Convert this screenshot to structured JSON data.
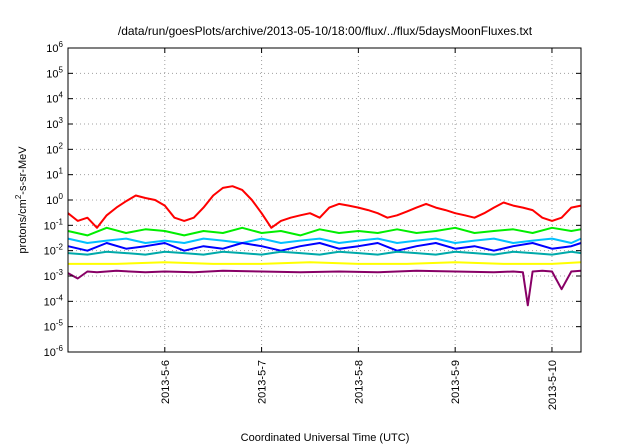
{
  "chart_data": {
    "type": "line",
    "title": "/data/run/goesPlots/archive/2013-05-10/18:00/flux/../flux/5daysMoonFluxes.txt",
    "xlabel": "Coordinated Universal Time (UTC)",
    "ylabel_parts": [
      "protons/cm",
      "2",
      "-s-sr-MeV"
    ],
    "yscale": "log",
    "ylim": [
      1e-06,
      1000000.0
    ],
    "xlim": [
      0.0,
      5.3
    ],
    "grid": true,
    "y_ticks": [
      {
        "exp": -6,
        "label": "10",
        "sup": "-6"
      },
      {
        "exp": -5,
        "label": "10",
        "sup": "-5"
      },
      {
        "exp": -4,
        "label": "10",
        "sup": "-4"
      },
      {
        "exp": -3,
        "label": "10",
        "sup": "-3"
      },
      {
        "exp": -2,
        "label": "10",
        "sup": "-2"
      },
      {
        "exp": -1,
        "label": "10",
        "sup": "-1"
      },
      {
        "exp": 0,
        "label": "10",
        "sup": "0"
      },
      {
        "exp": 1,
        "label": "10",
        "sup": "1"
      },
      {
        "exp": 2,
        "label": "10",
        "sup": "2"
      },
      {
        "exp": 3,
        "label": "10",
        "sup": "3"
      },
      {
        "exp": 4,
        "label": "10",
        "sup": "4"
      },
      {
        "exp": 5,
        "label": "10",
        "sup": "5"
      },
      {
        "exp": 6,
        "label": "10",
        "sup": "6"
      }
    ],
    "x_ticks": [
      {
        "x": 1.0,
        "label": "2013-5-6"
      },
      {
        "x": 2.0,
        "label": "2013-5-7"
      },
      {
        "x": 3.0,
        "label": "2013-5-8"
      },
      {
        "x": 4.0,
        "label": "2013-5-9"
      },
      {
        "x": 5.0,
        "label": "2013-5-10"
      }
    ],
    "series": [
      {
        "color": "#ff0000",
        "x": [
          0.0,
          0.1,
          0.2,
          0.3,
          0.4,
          0.5,
          0.6,
          0.7,
          0.8,
          0.9,
          1.0,
          1.1,
          1.2,
          1.3,
          1.4,
          1.5,
          1.6,
          1.7,
          1.8,
          1.9,
          2.0,
          2.1,
          2.2,
          2.3,
          2.4,
          2.5,
          2.6,
          2.7,
          2.8,
          2.9,
          3.0,
          3.1,
          3.2,
          3.3,
          3.4,
          3.5,
          3.6,
          3.7,
          3.8,
          3.9,
          4.0,
          4.1,
          4.2,
          4.3,
          4.4,
          4.5,
          4.6,
          4.7,
          4.8,
          4.9,
          5.0,
          5.1,
          5.2,
          5.3
        ],
        "y": [
          0.3,
          0.15,
          0.2,
          0.08,
          0.25,
          0.5,
          0.9,
          1.5,
          1.2,
          1.0,
          0.6,
          0.2,
          0.15,
          0.2,
          0.5,
          1.5,
          3.0,
          3.5,
          2.5,
          1.0,
          0.3,
          0.08,
          0.15,
          0.2,
          0.25,
          0.3,
          0.2,
          0.5,
          0.7,
          0.6,
          0.5,
          0.4,
          0.3,
          0.2,
          0.25,
          0.35,
          0.5,
          0.7,
          0.5,
          0.4,
          0.3,
          0.25,
          0.2,
          0.3,
          0.5,
          0.8,
          0.6,
          0.5,
          0.4,
          0.2,
          0.15,
          0.2,
          0.5,
          0.6
        ]
      },
      {
        "color": "#00ee00",
        "x": [
          0.0,
          0.2,
          0.4,
          0.6,
          0.8,
          1.0,
          1.2,
          1.4,
          1.6,
          1.8,
          2.0,
          2.2,
          2.4,
          2.6,
          2.8,
          3.0,
          3.2,
          3.4,
          3.6,
          3.8,
          4.0,
          4.2,
          4.4,
          4.6,
          4.8,
          5.0,
          5.2,
          5.3
        ],
        "y": [
          0.06,
          0.04,
          0.08,
          0.05,
          0.07,
          0.06,
          0.04,
          0.06,
          0.05,
          0.08,
          0.05,
          0.06,
          0.04,
          0.07,
          0.05,
          0.06,
          0.05,
          0.07,
          0.05,
          0.06,
          0.08,
          0.05,
          0.06,
          0.07,
          0.05,
          0.08,
          0.06,
          0.07
        ]
      },
      {
        "color": "#00bfff",
        "x": [
          0.0,
          0.2,
          0.4,
          0.6,
          0.8,
          1.0,
          1.2,
          1.4,
          1.6,
          1.8,
          2.0,
          2.2,
          2.4,
          2.6,
          2.8,
          3.0,
          3.2,
          3.4,
          3.6,
          3.8,
          4.0,
          4.2,
          4.4,
          4.6,
          4.8,
          5.0,
          5.2,
          5.3
        ],
        "y": [
          0.03,
          0.02,
          0.025,
          0.03,
          0.02,
          0.025,
          0.02,
          0.03,
          0.025,
          0.02,
          0.03,
          0.02,
          0.025,
          0.03,
          0.02,
          0.025,
          0.03,
          0.02,
          0.025,
          0.03,
          0.02,
          0.025,
          0.03,
          0.02,
          0.025,
          0.03,
          0.02,
          0.03
        ]
      },
      {
        "color": "#0000ff",
        "x": [
          0.0,
          0.2,
          0.4,
          0.6,
          0.8,
          1.0,
          1.2,
          1.4,
          1.6,
          1.8,
          2.0,
          2.2,
          2.4,
          2.6,
          2.8,
          3.0,
          3.2,
          3.4,
          3.6,
          3.8,
          4.0,
          4.2,
          4.4,
          4.6,
          4.8,
          5.0,
          5.2,
          5.3
        ],
        "y": [
          0.015,
          0.01,
          0.02,
          0.012,
          0.015,
          0.02,
          0.01,
          0.015,
          0.012,
          0.02,
          0.015,
          0.01,
          0.015,
          0.02,
          0.012,
          0.015,
          0.02,
          0.01,
          0.015,
          0.02,
          0.012,
          0.015,
          0.01,
          0.015,
          0.02,
          0.012,
          0.015,
          0.02
        ]
      },
      {
        "color": "#00aaaa",
        "x": [
          0.0,
          0.2,
          0.4,
          0.6,
          0.8,
          1.0,
          1.2,
          1.4,
          1.6,
          1.8,
          2.0,
          2.2,
          2.4,
          2.6,
          2.8,
          3.0,
          3.2,
          3.4,
          3.6,
          3.8,
          4.0,
          4.2,
          4.4,
          4.6,
          4.8,
          5.0,
          5.2,
          5.3
        ],
        "y": [
          0.008,
          0.007,
          0.009,
          0.008,
          0.007,
          0.009,
          0.008,
          0.007,
          0.009,
          0.008,
          0.007,
          0.009,
          0.008,
          0.007,
          0.009,
          0.008,
          0.007,
          0.009,
          0.008,
          0.007,
          0.009,
          0.008,
          0.007,
          0.009,
          0.008,
          0.007,
          0.009,
          0.008
        ]
      },
      {
        "color": "#ffff00",
        "x": [
          0.0,
          0.5,
          1.0,
          1.5,
          2.0,
          2.5,
          3.0,
          3.5,
          4.0,
          4.5,
          5.0,
          5.3
        ],
        "y": [
          0.003,
          0.003,
          0.0035,
          0.003,
          0.003,
          0.0035,
          0.003,
          0.003,
          0.0035,
          0.003,
          0.003,
          0.0035
        ]
      },
      {
        "color": "#880066",
        "x": [
          0.0,
          0.1,
          0.2,
          0.3,
          0.5,
          0.8,
          1.0,
          1.3,
          1.6,
          2.0,
          2.4,
          2.8,
          3.2,
          3.6,
          4.0,
          4.4,
          4.6,
          4.7,
          4.75,
          4.8,
          4.9,
          5.0,
          5.1,
          5.2,
          5.3
        ],
        "y": [
          0.0013,
          0.0008,
          0.0015,
          0.0014,
          0.0016,
          0.0014,
          0.0015,
          0.0014,
          0.0016,
          0.0015,
          0.0014,
          0.0015,
          0.0014,
          0.0016,
          0.0015,
          0.0014,
          0.0015,
          0.0014,
          7e-05,
          0.0015,
          0.0016,
          0.0015,
          0.0003,
          0.0015,
          0.0016
        ]
      }
    ]
  }
}
